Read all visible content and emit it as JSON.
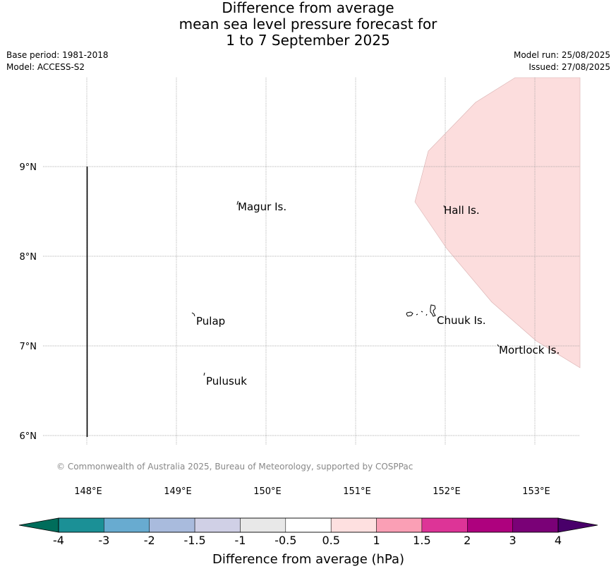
{
  "title": {
    "line1": "Difference from average",
    "line2": "mean sea level pressure forecast for",
    "line3": "1 to 7 September 2025"
  },
  "meta": {
    "base_period": "Base period: 1981-2018",
    "model": "Model: ACCESS-S2",
    "model_run": "Model run: 25/08/2025",
    "issued": "Issued: 27/08/2025"
  },
  "map": {
    "lat_ticks": [
      "9°N",
      "8°N",
      "7°N",
      "6°N"
    ],
    "lon_ticks": [
      "148°E",
      "149°E",
      "150°E",
      "151°E",
      "152°E",
      "153°E"
    ],
    "places": [
      {
        "name": "Magur Is."
      },
      {
        "name": "Hall Is."
      },
      {
        "name": "Pulap"
      },
      {
        "name": "Chuuk Is."
      },
      {
        "name": "Mortlock Is."
      },
      {
        "name": "Pulusuk"
      }
    ],
    "shaded_region_category": "0.5 to 1",
    "shaded_region_color": "#fcdddd",
    "copyright": "© Commonwealth of Australia 2025, Bureau of Meteorology, supported by COSPPac"
  },
  "colorbar": {
    "title": "Difference from average (hPa)",
    "labels": [
      "-4",
      "-3",
      "-2",
      "-1.5",
      "-1",
      "-0.5",
      "0.5",
      "1",
      "1.5",
      "2",
      "3",
      "4"
    ],
    "colors": [
      "#1b9096",
      "#68abd0",
      "#a9bbdd",
      "#d0d0e6",
      "#e8e8e8",
      "#ffffff",
      "#fee0e0",
      "#fa9fb5",
      "#dd3497",
      "#ae017e",
      "#7a0177"
    ],
    "under_color": "#006d5b",
    "over_color": "#49006a"
  }
}
